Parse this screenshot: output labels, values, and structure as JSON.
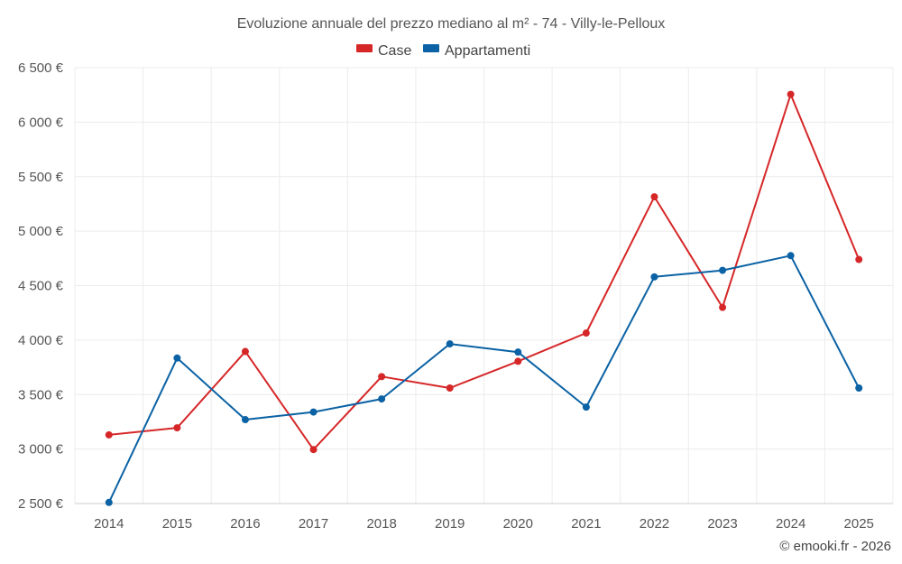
{
  "chart_data": {
    "type": "line",
    "title": "Evoluzione annuale del prezzo mediano al m² - 74 - Villy-le-Pelloux",
    "xlabel": "",
    "ylabel": "",
    "categories": [
      "2014",
      "2015",
      "2016",
      "2017",
      "2018",
      "2019",
      "2020",
      "2021",
      "2022",
      "2023",
      "2024",
      "2025"
    ],
    "ylim": [
      2500,
      6500
    ],
    "yticks": [
      2500,
      3000,
      3500,
      4000,
      4500,
      5000,
      5500,
      6000,
      6500
    ],
    "ytick_labels": [
      "2 500 €",
      "3 000 €",
      "3 500 €",
      "4 000 €",
      "4 500 €",
      "5 000 €",
      "5 500 €",
      "6 000 €",
      "6 500 €"
    ],
    "grid": true,
    "legend_position": "top-center",
    "series": [
      {
        "name": "Case",
        "color": "#d62728",
        "values": [
          3130,
          3195,
          3895,
          2995,
          3665,
          3560,
          3805,
          4065,
          5315,
          4300,
          6255,
          4740
        ]
      },
      {
        "name": "Appartamenti",
        "color": "#0b62a4",
        "values": [
          2510,
          3835,
          3270,
          3340,
          3460,
          3965,
          3890,
          3385,
          4580,
          4640,
          4775,
          3560
        ]
      }
    ],
    "credit": "© emooki.fr - 2026"
  }
}
